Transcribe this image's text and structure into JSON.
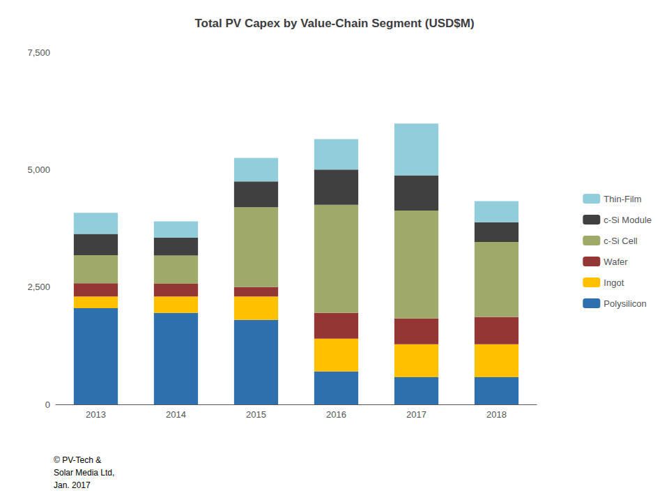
{
  "chart_data": {
    "type": "bar",
    "title": "Total PV Capex by Value-Chain Segment (USD$M)",
    "categories": [
      "2013",
      "2014",
      "2015",
      "2016",
      "2017",
      "2018"
    ],
    "series": [
      {
        "name": "Polysilicon",
        "color": "#2E6FAD",
        "values": [
          2050,
          1950,
          1800,
          700,
          580,
          580
        ]
      },
      {
        "name": "Ingot",
        "color": "#FFC000",
        "values": [
          250,
          350,
          500,
          700,
          700,
          700
        ]
      },
      {
        "name": "Wafer",
        "color": "#943634",
        "values": [
          280,
          270,
          200,
          550,
          550,
          580
        ]
      },
      {
        "name": "c-Si Cell",
        "color": "#9EA96A",
        "values": [
          600,
          600,
          1700,
          2300,
          2300,
          1600
        ]
      },
      {
        "name": "c-Si Module",
        "color": "#404040",
        "values": [
          450,
          380,
          550,
          750,
          750,
          420
        ]
      },
      {
        "name": "Thin-Film",
        "color": "#92CDDC",
        "values": [
          450,
          350,
          500,
          650,
          1100,
          450
        ]
      }
    ],
    "stacked": true,
    "ylim": [
      0,
      7500
    ],
    "yticks": [
      0,
      {
        "value": 2500,
        "label": "2,500"
      },
      {
        "value": 5000,
        "label": "5,000"
      },
      {
        "value": 7500,
        "label": "7,500"
      }
    ],
    "grid": false,
    "legend": "right",
    "annotation": "© PV-Tech &\nSolar Media Ltd,\nJan. 2017"
  }
}
